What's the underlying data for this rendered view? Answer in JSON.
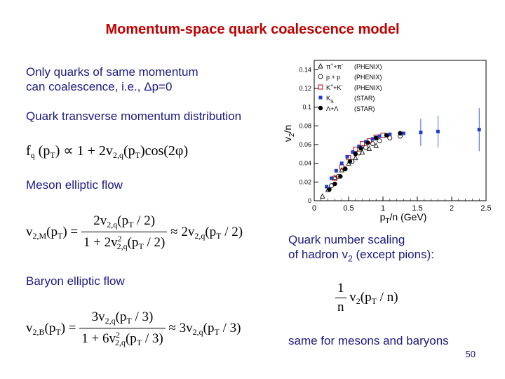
{
  "title": "Momentum-space quark coalescence model",
  "intro": {
    "line1": "Only quarks of same momentum",
    "line2": "can coalescence, i.e., Δp=0"
  },
  "quark_dist_label": "Quark transverse momentum distribution",
  "meson_label": "Meson elliptic flow",
  "baryon_label": "Baryon elliptic flow",
  "scaling_note": {
    "line1": "Quark number scaling",
    "line2_prefix": "of hadron v",
    "line2_sub": "2",
    "line2_suffix": " (except pions):"
  },
  "same_note": "same for mesons and baryons",
  "page_number": "50",
  "formulas": {
    "fq": {
      "f": "f",
      "q": "q",
      "arg": "(p",
      "T": "T",
      "close": ")",
      "prop": "∝ 1 + 2v",
      "sub2q": "2,q",
      "arg2": "(p",
      "close2": ")cos(2φ)"
    },
    "meson": {
      "lhs": "v",
      "lhs_sub": "2,M",
      "lhs_arg": "(p",
      "T": "T",
      "lhs_close": ") =",
      "num": "2v",
      "num_sub": "2,q",
      "num_arg": "(p",
      "num_close": " / 2)",
      "den": "1 + 2v",
      "den_sup": "2",
      "den_sub": "2,q",
      "den_arg": "(p",
      "den_close": " / 2)",
      "approx": "≈ 2v",
      "approx_sub": "2,q",
      "approx_arg": "(p",
      "approx_close": " / 2)"
    },
    "baryon": {
      "lhs": "v",
      "lhs_sub": "2,B",
      "lhs_arg": "(p",
      "T": "T",
      "lhs_close": ") =",
      "num": "3v",
      "num_sub": "2,q",
      "num_arg": "(p",
      "num_close": " / 3)",
      "den": "1 + 6v",
      "den_sup": "2",
      "den_sub": "2,q",
      "den_arg": "(p",
      "den_close": " / 3)",
      "approx": "≈ 3v",
      "approx_sub": "2,q",
      "approx_arg": "(p",
      "approx_close": " / 3)"
    },
    "scaling": {
      "num": "1",
      "den": "n",
      "v": "v",
      "v_sub": "2",
      "arg": "(p",
      "T": "T",
      "close": " / n)"
    }
  },
  "chart_data": {
    "type": "scatter",
    "ylabel_main": "v",
    "ylabel_sub": "2",
    "ylabel_tail": "/n",
    "xlabel_main": "p",
    "xlabel_sub": "T",
    "xlabel_tail": "/n (GeV)",
    "xlim": [
      0,
      2.5
    ],
    "ylim": [
      0,
      0.15
    ],
    "x_ticks": [
      "0",
      "0.5",
      "1",
      "1.5",
      "2",
      "2.5"
    ],
    "x_tick_values": [
      0,
      0.5,
      1,
      1.5,
      2,
      2.5
    ],
    "y_ticks": [
      "0",
      "0.02",
      "0.04",
      "0.06",
      "0.08",
      "0.1",
      "0.12",
      "0.14"
    ],
    "y_tick_values": [
      0,
      0.02,
      0.04,
      0.06,
      0.08,
      0.1,
      0.12,
      0.14
    ],
    "legend_position": "top-left",
    "series": [
      {
        "name_main": "π",
        "name_sup": "+",
        "name_mid": "+π",
        "name_sup2": "-",
        "name_exp": "(PHENIX)",
        "marker": "triangle",
        "color": "#222222",
        "points": [
          [
            0.12,
            0.005
          ],
          [
            0.2,
            0.012
          ],
          [
            0.3,
            0.025
          ],
          [
            0.4,
            0.033
          ],
          [
            0.5,
            0.04
          ],
          [
            0.6,
            0.046
          ],
          [
            0.7,
            0.052
          ],
          [
            0.8,
            0.056
          ],
          [
            0.9,
            0.059
          ]
        ]
      },
      {
        "name_main": "p + p",
        "name_exp": "(PHENIX)",
        "marker": "open-circle",
        "color": "#222222",
        "points": [
          [
            0.25,
            0.016
          ],
          [
            0.35,
            0.026
          ],
          [
            0.45,
            0.034
          ],
          [
            0.55,
            0.042
          ],
          [
            0.65,
            0.051
          ],
          [
            0.75,
            0.057
          ],
          [
            0.85,
            0.061
          ],
          [
            0.95,
            0.064
          ],
          [
            1.1,
            0.067
          ],
          [
            1.25,
            0.069
          ]
        ]
      },
      {
        "name_main": "K",
        "name_sup": "+",
        "name_mid": "+K",
        "name_sup2": "-",
        "name_exp": "(PHENIX)",
        "marker": "open-square",
        "color": "#c00000",
        "points": [
          [
            0.3,
            0.024
          ],
          [
            0.4,
            0.036
          ],
          [
            0.5,
            0.046
          ],
          [
            0.6,
            0.055
          ],
          [
            0.7,
            0.061
          ],
          [
            0.8,
            0.064
          ],
          [
            0.9,
            0.068
          ],
          [
            1.0,
            0.07
          ]
        ]
      },
      {
        "name_main": "K",
        "name_sub": "S",
        "name_exp": "(STAR)",
        "marker": "square",
        "color": "#1f3fd0",
        "points": [
          [
            0.18,
            0.015
          ],
          [
            0.25,
            0.024
          ],
          [
            0.32,
            0.032
          ],
          [
            0.4,
            0.04
          ],
          [
            0.48,
            0.047
          ],
          [
            0.56,
            0.052
          ],
          [
            0.65,
            0.058
          ],
          [
            0.75,
            0.063
          ],
          [
            0.85,
            0.066
          ],
          [
            0.95,
            0.069
          ],
          [
            1.1,
            0.071
          ],
          [
            1.3,
            0.072
          ],
          [
            1.55,
            0.073
          ],
          [
            1.8,
            0.074
          ],
          [
            2.4,
            0.076
          ]
        ]
      },
      {
        "name_main": "Λ+Λ",
        "name_exp": "(STAR)",
        "marker": "circle",
        "color": "#000000",
        "points": [
          [
            0.22,
            0.012
          ],
          [
            0.3,
            0.018
          ],
          [
            0.38,
            0.026
          ],
          [
            0.45,
            0.034
          ],
          [
            0.52,
            0.042
          ],
          [
            0.6,
            0.05
          ],
          [
            0.68,
            0.056
          ],
          [
            0.78,
            0.062
          ],
          [
            0.9,
            0.067
          ],
          [
            1.05,
            0.07
          ],
          [
            1.25,
            0.072
          ]
        ]
      }
    ]
  }
}
